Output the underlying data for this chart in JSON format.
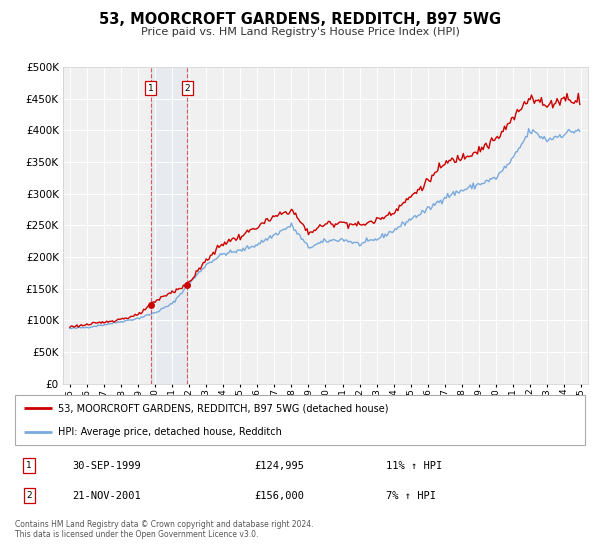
{
  "title": "53, MOORCROFT GARDENS, REDDITCH, B97 5WG",
  "subtitle": "Price paid vs. HM Land Registry's House Price Index (HPI)",
  "legend_line1": "53, MOORCROFT GARDENS, REDDITCH, B97 5WG (detached house)",
  "legend_line2": "HPI: Average price, detached house, Redditch",
  "transaction1_date": "30-SEP-1999",
  "transaction1_price": "£124,995",
  "transaction1_hpi": "11% ↑ HPI",
  "transaction2_date": "21-NOV-2001",
  "transaction2_price": "£156,000",
  "transaction2_hpi": "7% ↑ HPI",
  "footer": "Contains HM Land Registry data © Crown copyright and database right 2024.\nThis data is licensed under the Open Government Licence v3.0.",
  "hpi_color": "#7aaadd",
  "price_color": "#cc0000",
  "background_color": "#ffffff",
  "plot_bg_color": "#f0f0f0",
  "grid_color": "#ffffff",
  "transaction1_x": 1999.75,
  "transaction2_x": 2001.9,
  "transaction1_y": 124995,
  "transaction2_y": 156000,
  "ylim": [
    0,
    500000
  ],
  "xlim_start": 1994.6,
  "xlim_end": 2025.4,
  "title_fontsize": 10.5,
  "subtitle_fontsize": 8
}
